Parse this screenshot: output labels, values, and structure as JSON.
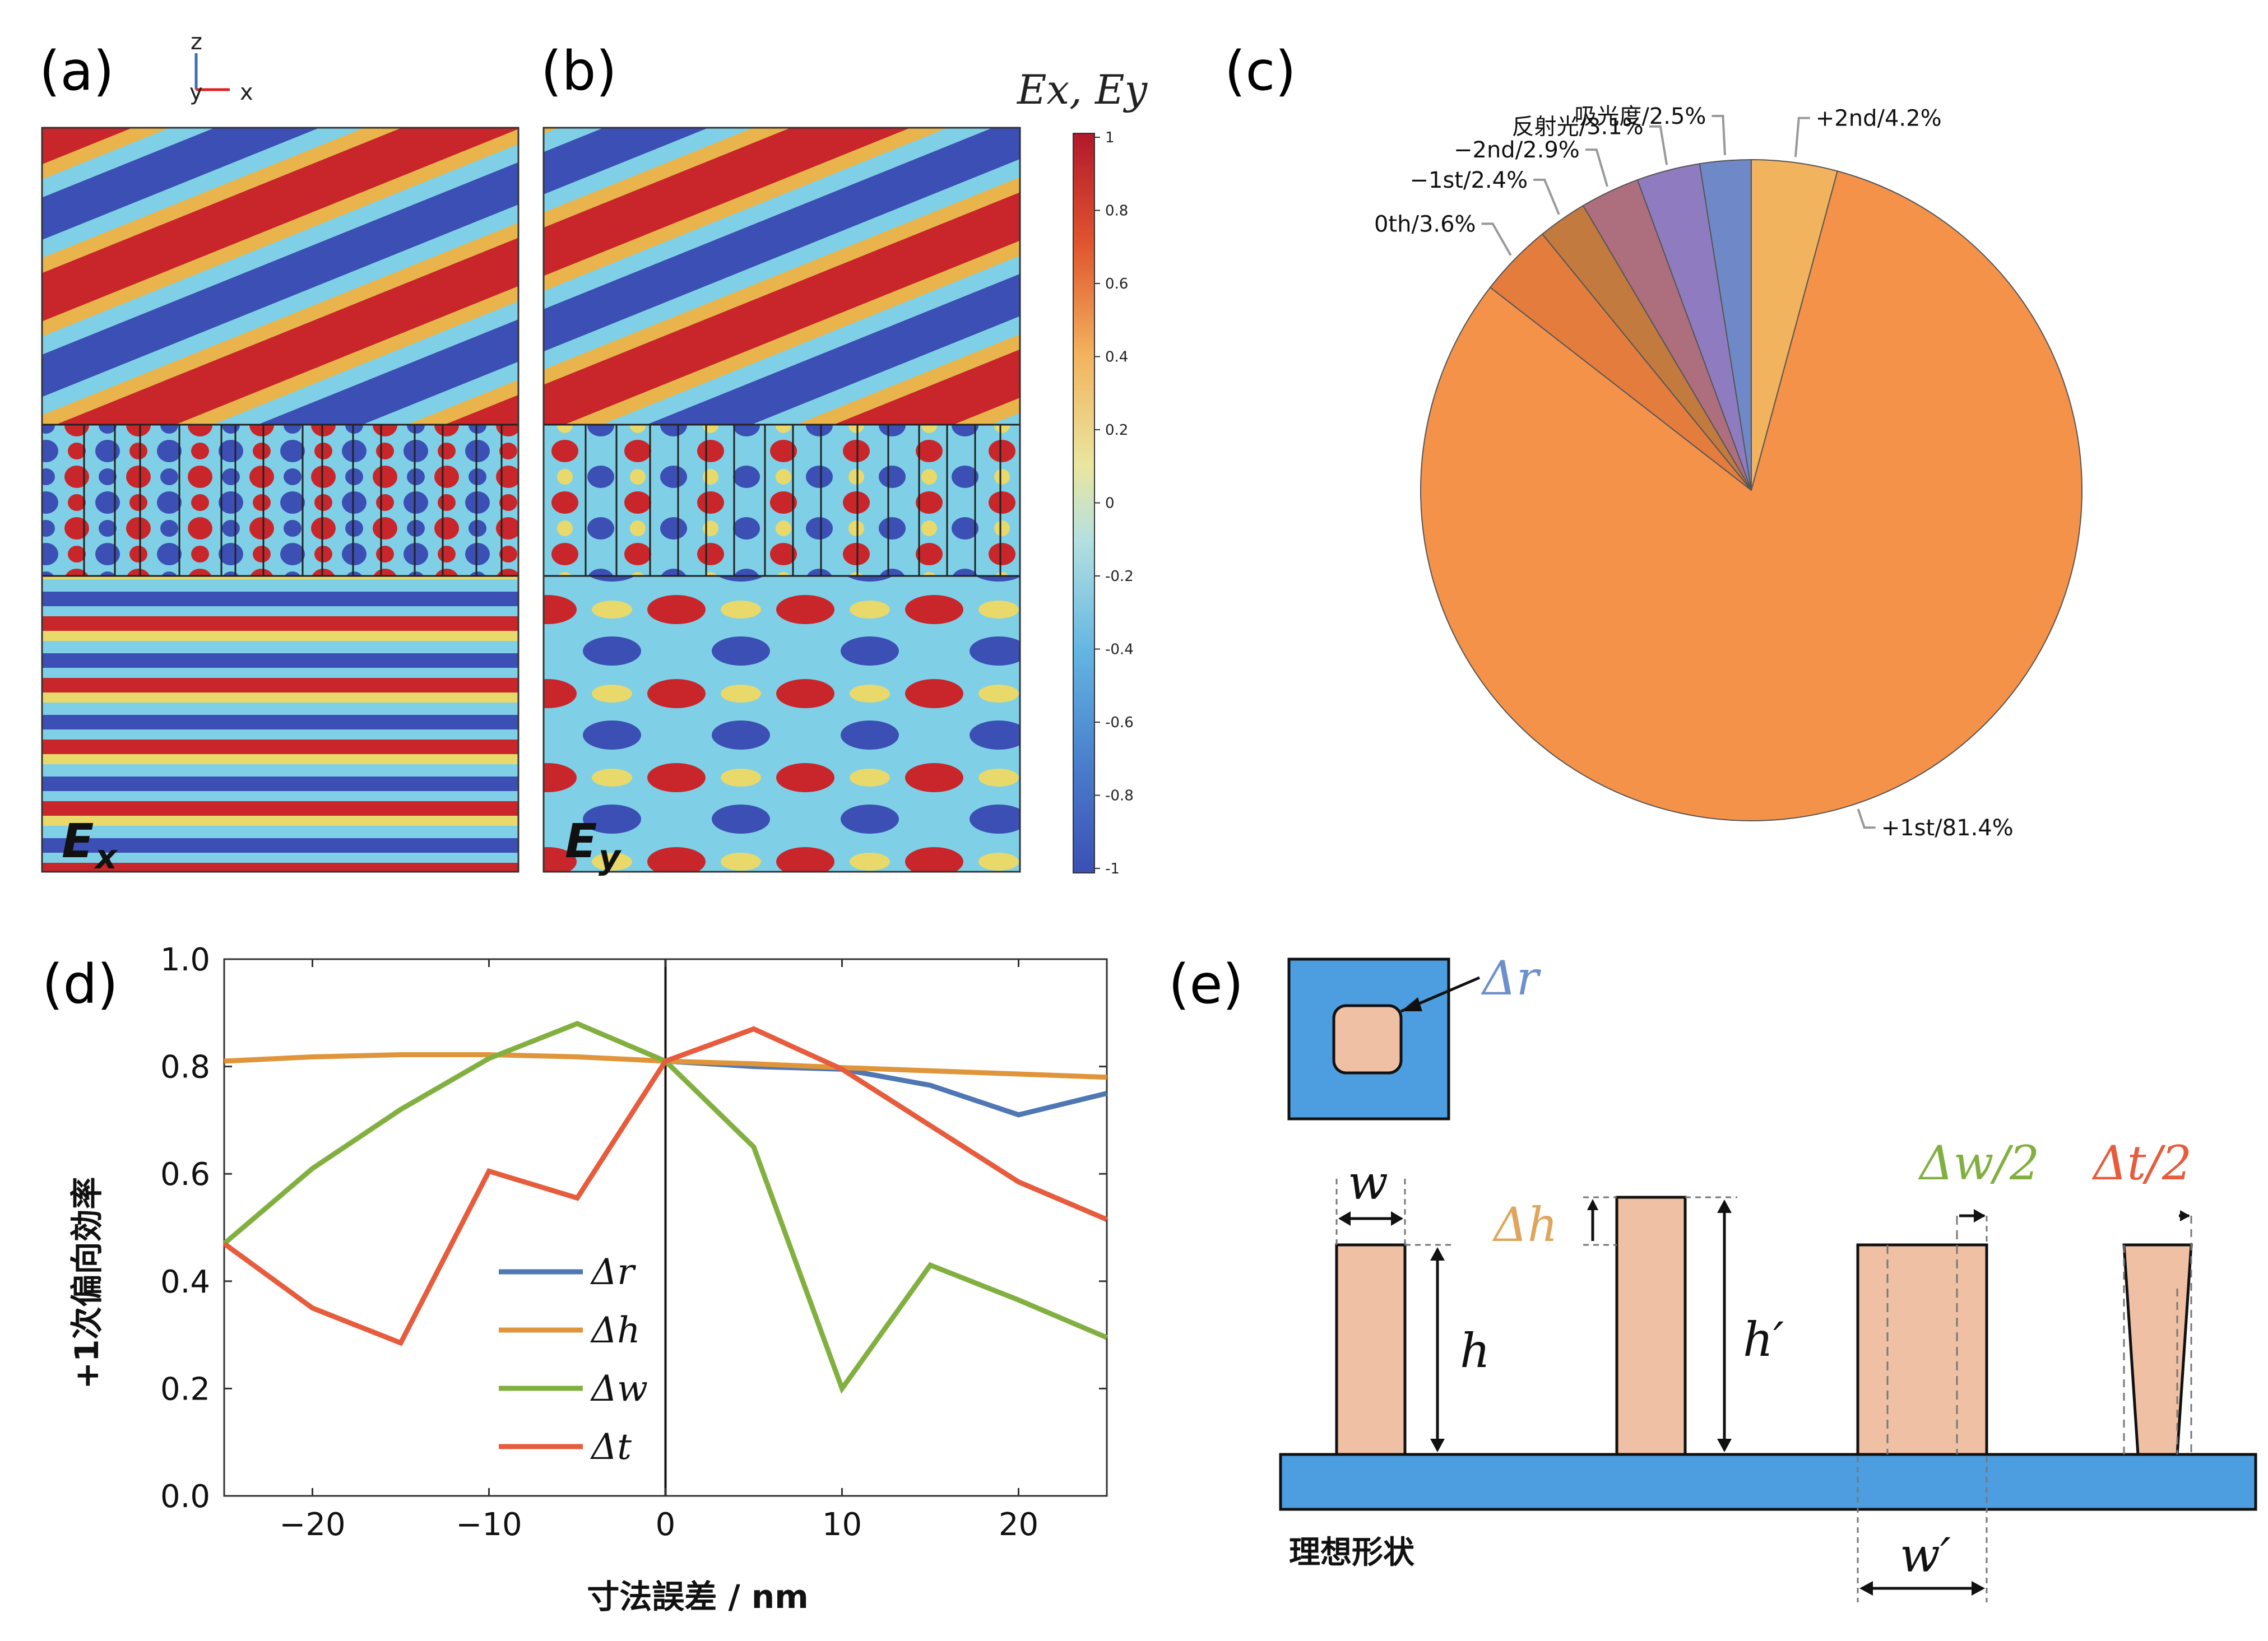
{
  "panels": {
    "a": "(a)",
    "b": "(b)",
    "c": "(c)",
    "d": "(d)",
    "e": "(e)"
  },
  "field_maps": {
    "colorbar_title": "Ex, Ey",
    "colorbar_ticks": [
      "1",
      "0.8",
      "0.6",
      "0.4",
      "0.2",
      "0",
      "-0.2",
      "-0.4",
      "-0.6",
      "-0.8",
      "-1"
    ],
    "axes_glyph": {
      "z": "z",
      "y": "y",
      "x": "x"
    },
    "map_a_label": {
      "main": "E",
      "sub": "x"
    },
    "map_b_label": {
      "main": "E",
      "sub": "y"
    },
    "colors": {
      "red": "#c8262a",
      "blue": "#3b4fb4",
      "cyan": "#7fd0e6",
      "yellow": "#e9d96a"
    }
  },
  "chart_data": [
    {
      "type": "pie",
      "slices": [
        {
          "label": "+2nd/4.2%",
          "value": 4.2,
          "color": "#f2b35e"
        },
        {
          "label": "+1st/81.4%",
          "value": 81.4,
          "color": "#f5924a"
        },
        {
          "label": "0th/3.6%",
          "value": 3.6,
          "color": "#e47c3e"
        },
        {
          "label": "−1st/2.4%",
          "value": 2.4,
          "color": "#c27a3f"
        },
        {
          "label": "−2nd/2.9%",
          "value": 2.9,
          "color": "#ad6f7e"
        },
        {
          "label": "反射光/3.1%",
          "value": 3.1,
          "color": "#8f7cc0"
        },
        {
          "label": "吸光度/2.5%",
          "value": 2.5,
          "color": "#6f88c8"
        }
      ]
    },
    {
      "type": "line",
      "xlabel": "寸法誤差 / nm",
      "ylabel": "+1次偏向効率",
      "xlim": [
        -25,
        25
      ],
      "ylim": [
        0.0,
        1.0
      ],
      "xticks": [
        -20,
        -10,
        0,
        10,
        20
      ],
      "yticks": [
        0.0,
        0.2,
        0.4,
        0.6,
        0.8,
        1.0
      ],
      "xtick_labels": [
        "−20",
        "−10",
        "0",
        "10",
        "20"
      ],
      "ytick_labels": [
        "0.0",
        "0.2",
        "0.4",
        "0.6",
        "0.8",
        "1.0"
      ],
      "legend": "center",
      "series": [
        {
          "name": "Δr",
          "color": "#4f77b3",
          "x": [
            0,
            5,
            10,
            15,
            20,
            25
          ],
          "y": [
            0.81,
            0.8,
            0.795,
            0.765,
            0.71,
            0.75
          ]
        },
        {
          "name": "Δh",
          "color": "#e0953b",
          "x": [
            -25,
            -20,
            -15,
            -10,
            -5,
            0,
            5,
            10,
            15,
            20,
            25
          ],
          "y": [
            0.81,
            0.818,
            0.822,
            0.822,
            0.818,
            0.81,
            0.805,
            0.798,
            0.792,
            0.786,
            0.78
          ]
        },
        {
          "name": "Δw",
          "color": "#82b040",
          "x": [
            -25,
            -20,
            -15,
            -10,
            -5,
            0,
            5,
            10,
            15,
            20,
            25
          ],
          "y": [
            0.47,
            0.61,
            0.72,
            0.815,
            0.88,
            0.81,
            0.65,
            0.2,
            0.43,
            0.365,
            0.295
          ]
        },
        {
          "name": "Δt",
          "color": "#e65c3d",
          "x": [
            -25,
            -20,
            -15,
            -10,
            -5,
            0,
            5,
            10,
            15,
            20,
            25
          ],
          "y": [
            0.47,
            0.35,
            0.285,
            0.605,
            0.555,
            0.81,
            0.87,
            0.795,
            0.69,
            0.585,
            0.515
          ]
        }
      ]
    }
  ],
  "schematic": {
    "dr": "Δr",
    "w": "w",
    "h": "h",
    "dh": "Δh",
    "hp": "h′",
    "dw2": "Δw/2",
    "dt2": "Δt/2",
    "wp": "w′",
    "ideal": "理想形状",
    "colors": {
      "blue": "#4c9ee0",
      "pillar": "#efc0a4",
      "dr": "#6d8fcc",
      "dh": "#e0a55d",
      "dw": "#82b040",
      "dt": "#e65c3d"
    }
  }
}
